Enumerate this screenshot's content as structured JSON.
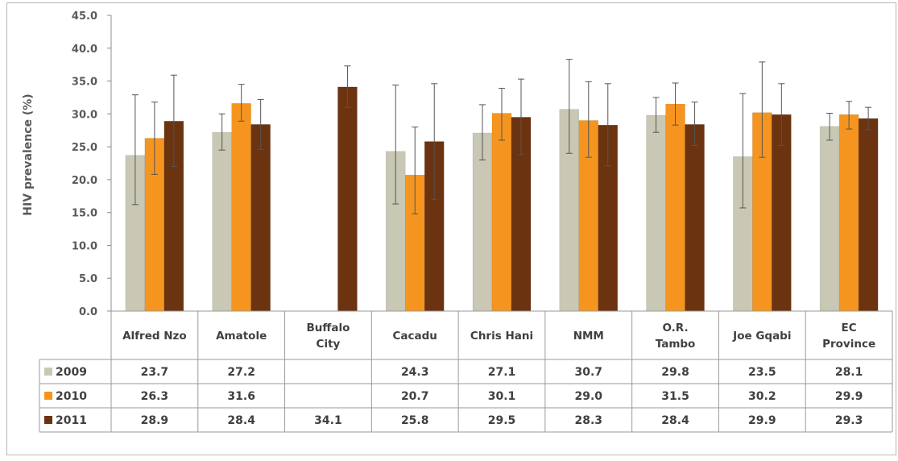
{
  "chart_data": {
    "type": "bar",
    "ylabel": "HIV prevalence (%)",
    "ylim": [
      0,
      45
    ],
    "yticks": [
      "0.0",
      "5.0",
      "10.0",
      "15.0",
      "20.0",
      "25.0",
      "30.0",
      "35.0",
      "40.0",
      "45.0"
    ],
    "categories": [
      [
        "Alfred Nzo"
      ],
      [
        "Amatole"
      ],
      [
        "Buffalo",
        "City"
      ],
      [
        "Cacadu"
      ],
      [
        "Chris Hani"
      ],
      [
        "NMM"
      ],
      [
        "O.R.",
        "Tambo"
      ],
      [
        "Joe Gqabi"
      ],
      [
        "EC",
        "Province"
      ]
    ],
    "series": [
      {
        "name": "2009",
        "color": "#c8c8b4",
        "values": [
          23.7,
          27.2,
          null,
          24.3,
          27.1,
          30.7,
          29.8,
          23.5,
          28.1
        ],
        "labels": [
          "23.7",
          "27.2",
          "",
          "24.3",
          "27.1",
          "30.7",
          "29.8",
          "23.5",
          "28.1"
        ],
        "err_low": [
          16.2,
          24.5,
          null,
          16.3,
          23.0,
          24.0,
          27.2,
          15.7,
          26.0
        ],
        "err_high": [
          32.9,
          30.0,
          null,
          34.4,
          31.4,
          38.3,
          32.5,
          33.1,
          30.1
        ]
      },
      {
        "name": "2010",
        "color": "#f5951f",
        "values": [
          26.3,
          31.6,
          null,
          20.7,
          30.1,
          29.0,
          31.5,
          30.2,
          29.9
        ],
        "labels": [
          "26.3",
          "31.6",
          "",
          "20.7",
          "30.1",
          "29.0",
          "31.5",
          "30.2",
          "29.9"
        ],
        "err_low": [
          20.8,
          28.9,
          null,
          14.8,
          26.0,
          23.4,
          28.3,
          23.4,
          27.7
        ],
        "err_high": [
          31.8,
          34.5,
          null,
          28.0,
          33.9,
          34.9,
          34.7,
          37.9,
          31.9
        ]
      },
      {
        "name": "2011",
        "color": "#6b3310",
        "values": [
          28.9,
          28.4,
          34.1,
          25.8,
          29.5,
          28.3,
          28.4,
          29.9,
          29.3
        ],
        "labels": [
          "28.9",
          "28.4",
          "34.1",
          "25.8",
          "29.5",
          "28.3",
          "28.4",
          "29.9",
          "29.3"
        ],
        "err_low": [
          22.0,
          24.6,
          31.0,
          17.0,
          23.8,
          22.1,
          25.2,
          25.2,
          27.6
        ],
        "err_high": [
          35.9,
          32.2,
          37.3,
          34.6,
          35.3,
          34.6,
          31.8,
          34.6,
          31.0
        ]
      }
    ],
    "grid": false,
    "legend": "data-table"
  }
}
